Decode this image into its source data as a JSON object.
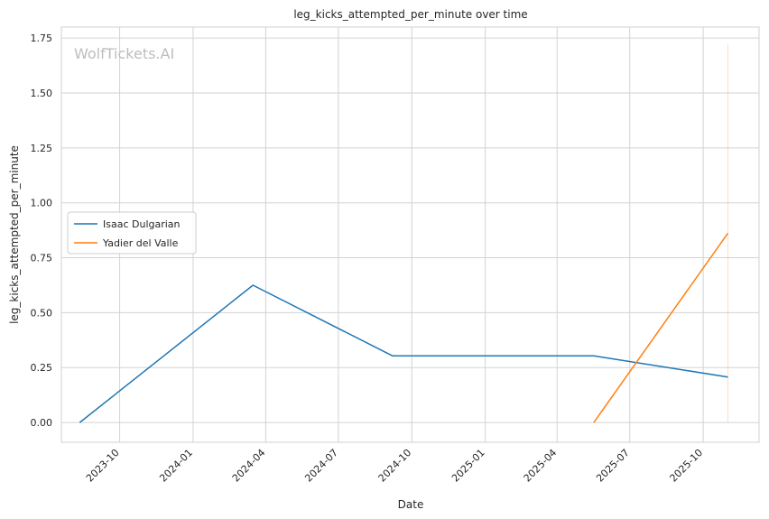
{
  "chart_data": {
    "type": "line",
    "title": "leg_kicks_attempted_per_minute over time",
    "xlabel": "Date",
    "ylabel": "leg_kicks_attempted_per_minute",
    "watermark": "WolfTickets.AI",
    "x_ticks": [
      "2023-10",
      "2024-01",
      "2024-04",
      "2024-07",
      "2024-10",
      "2025-01",
      "2025-04",
      "2025-07",
      "2025-10"
    ],
    "y_ticks": [
      "0.00",
      "0.25",
      "0.50",
      "0.75",
      "1.00",
      "1.25",
      "1.50",
      "1.75"
    ],
    "xlim": [
      "2023-07-20",
      "2025-12-10"
    ],
    "ylim": [
      -0.09,
      1.8
    ],
    "grid": true,
    "legend_position": "center-left",
    "series": [
      {
        "name": "Isaac Dulgarian",
        "color": "#1f77b4",
        "x": [
          "2023-08-12",
          "2024-03-16",
          "2024-09-07",
          "2025-05-17",
          "2025-11-01"
        ],
        "y": [
          0.0,
          0.625,
          0.303,
          0.303,
          0.207
        ]
      },
      {
        "name": "Yadier del Valle",
        "color": "#ff7f0e",
        "x": [
          "2025-05-17",
          "2025-11-01"
        ],
        "y": [
          0.0,
          0.862
        ]
      }
    ],
    "annotations": [
      {
        "type": "vertical-band",
        "color": "#ff7f0e",
        "x": "2025-11-01",
        "y": [
          0.0,
          1.72
        ]
      }
    ]
  }
}
